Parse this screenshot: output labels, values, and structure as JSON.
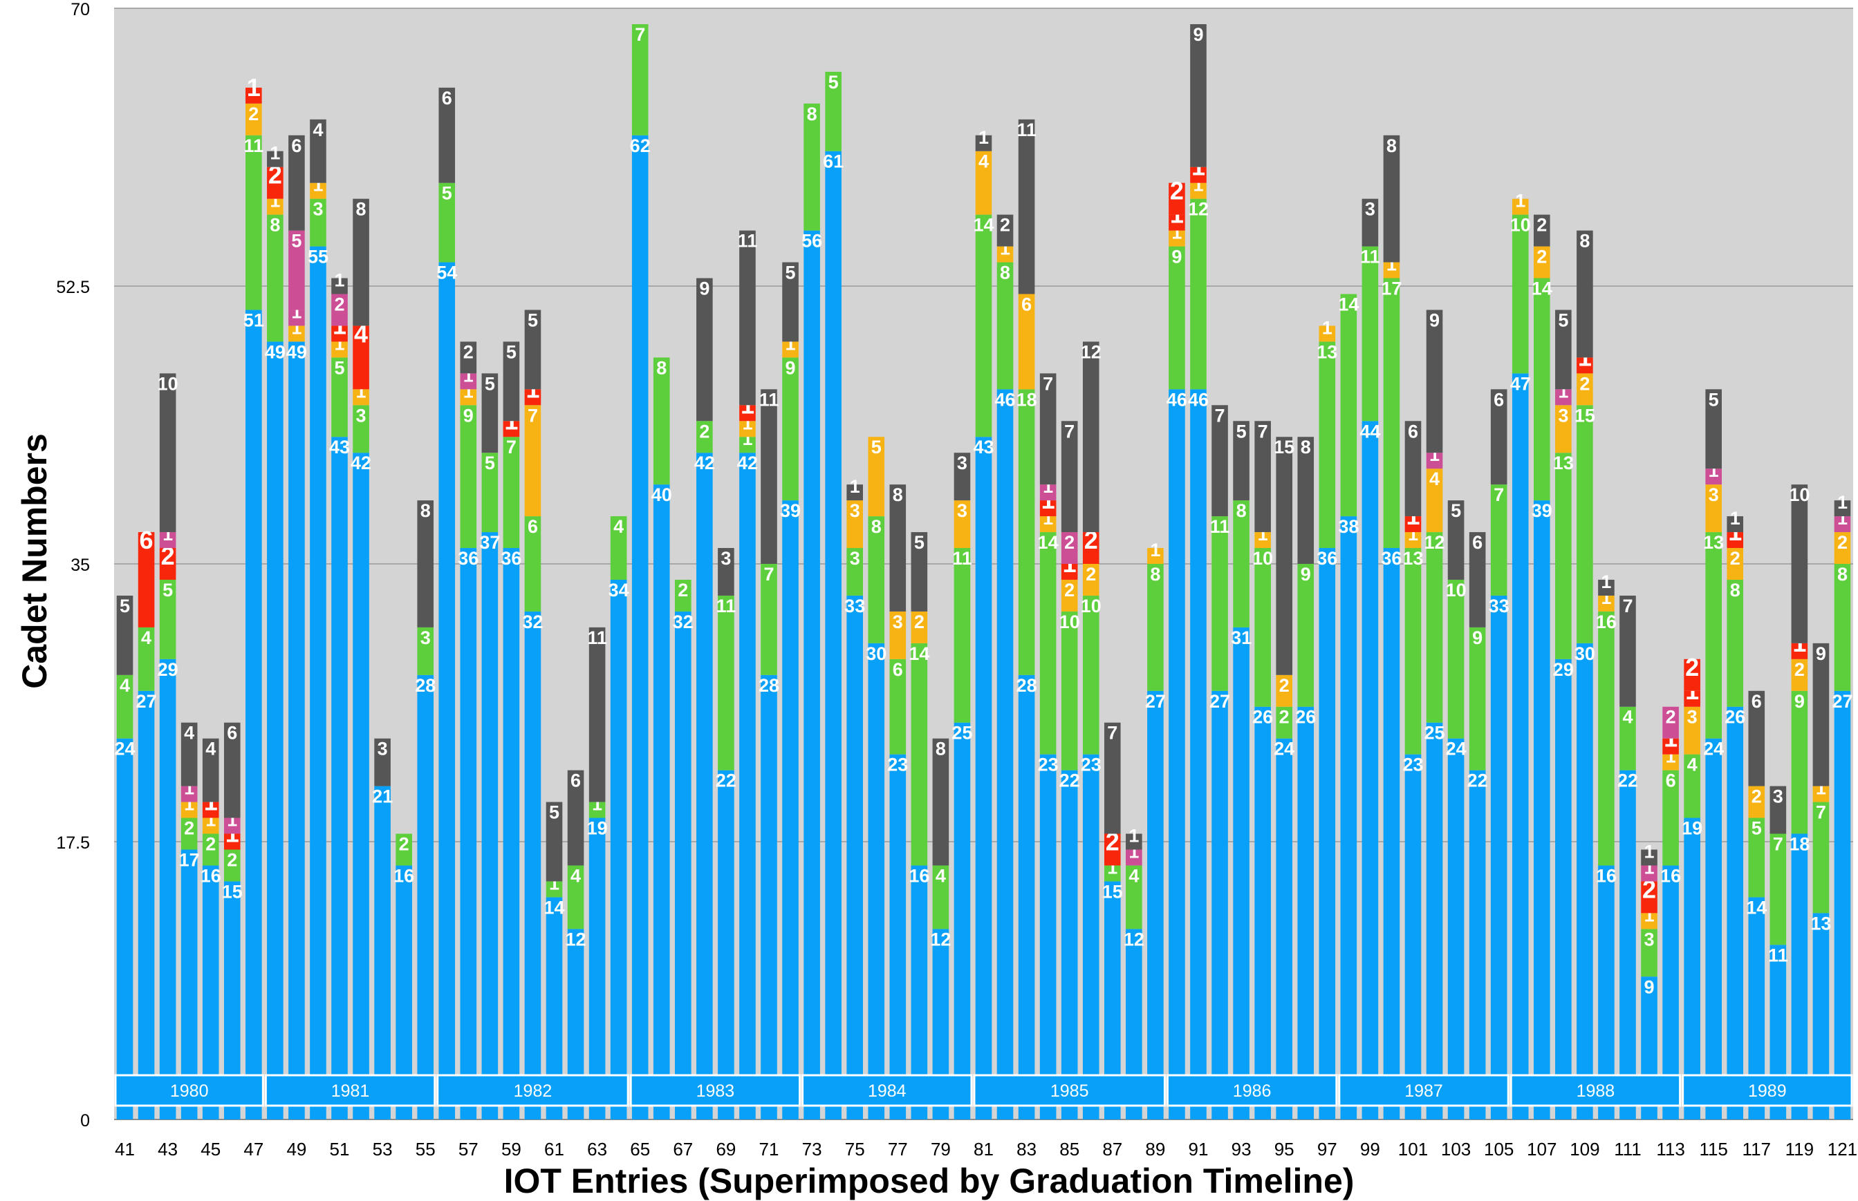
{
  "chart_data": {
    "type": "bar",
    "stacked": true,
    "xlabel": "IOT Entries (Superimposed by Graduation Timeline)",
    "ylabel": "Cadet Numbers",
    "ylim": [
      0,
      70
    ],
    "yticks": [
      0,
      17.5,
      35,
      52.5,
      70
    ],
    "grid": true,
    "background": "#d4d4d4",
    "xticks": [
      41,
      43,
      45,
      47,
      49,
      51,
      53,
      55,
      57,
      59,
      61,
      63,
      65,
      67,
      69,
      71,
      73,
      75,
      77,
      79,
      81,
      83,
      85,
      87,
      89,
      91,
      93,
      95,
      97,
      99,
      101,
      103,
      105,
      107,
      109,
      111,
      113,
      115,
      117,
      119,
      121
    ],
    "series_colors": [
      "#08a0f8",
      "#5ecf3c",
      "#f7b313",
      "#f8260a",
      "#cc4e94",
      "#565656"
    ],
    "timeline": [
      {
        "label": "1980",
        "from": 41,
        "to": 47
      },
      {
        "label": "1981",
        "from": 48,
        "to": 55
      },
      {
        "label": "1982",
        "from": 56,
        "to": 64
      },
      {
        "label": "1983",
        "from": 65,
        "to": 72
      },
      {
        "label": "1984",
        "from": 73,
        "to": 80
      },
      {
        "label": "1985",
        "from": 81,
        "to": 89
      },
      {
        "label": "1986",
        "from": 90,
        "to": 97
      },
      {
        "label": "1987",
        "from": 98,
        "to": 105
      },
      {
        "label": "1988",
        "from": 106,
        "to": 113
      },
      {
        "label": "1989",
        "from": 114,
        "to": 121
      }
    ],
    "categories": [
      41,
      42,
      43,
      44,
      45,
      46,
      47,
      48,
      49,
      50,
      51,
      52,
      53,
      54,
      55,
      56,
      57,
      58,
      59,
      60,
      61,
      62,
      63,
      64,
      65,
      66,
      67,
      68,
      69,
      70,
      71,
      72,
      73,
      74,
      75,
      76,
      77,
      78,
      79,
      80,
      81,
      82,
      83,
      84,
      85,
      86,
      87,
      88,
      89,
      90,
      91,
      92,
      93,
      94,
      95,
      96,
      97,
      98,
      99,
      100,
      101,
      102,
      103,
      104,
      105,
      106,
      107,
      108,
      109,
      110,
      111,
      112,
      113,
      114,
      115,
      116,
      117,
      118,
      119,
      120,
      121
    ],
    "stacks": [
      [
        [
          0,
          24
        ],
        [
          1,
          4
        ],
        [
          5,
          5
        ]
      ],
      [
        [
          0,
          27
        ],
        [
          1,
          4
        ],
        [
          3,
          6
        ]
      ],
      [
        [
          0,
          29
        ],
        [
          1,
          5
        ],
        [
          3,
          2
        ],
        [
          4,
          1
        ],
        [
          5,
          10
        ]
      ],
      [
        [
          0,
          17
        ],
        [
          1,
          2
        ],
        [
          2,
          1
        ],
        [
          4,
          1
        ],
        [
          5,
          4
        ]
      ],
      [
        [
          0,
          16
        ],
        [
          1,
          2
        ],
        [
          2,
          1
        ],
        [
          3,
          1
        ],
        [
          5,
          4
        ]
      ],
      [
        [
          0,
          15
        ],
        [
          1,
          2
        ],
        [
          3,
          1
        ],
        [
          4,
          1
        ],
        [
          5,
          6
        ]
      ],
      [
        [
          0,
          51
        ],
        [
          1,
          11
        ],
        [
          2,
          2
        ],
        [
          3,
          1
        ]
      ],
      [
        [
          0,
          49
        ],
        [
          1,
          8
        ],
        [
          2,
          1
        ],
        [
          3,
          2
        ],
        [
          5,
          1
        ]
      ],
      [
        [
          0,
          49
        ],
        [
          2,
          1
        ],
        [
          4,
          1
        ],
        [
          4,
          5
        ],
        [
          5,
          6
        ]
      ],
      [
        [
          0,
          55
        ],
        [
          1,
          3
        ],
        [
          2,
          1
        ],
        [
          5,
          4
        ]
      ],
      [
        [
          0,
          43
        ],
        [
          1,
          5
        ],
        [
          2,
          1
        ],
        [
          3,
          1
        ],
        [
          4,
          2
        ],
        [
          5,
          1
        ]
      ],
      [
        [
          0,
          42
        ],
        [
          1,
          3
        ],
        [
          2,
          1
        ],
        [
          3,
          4
        ],
        [
          5,
          8
        ]
      ],
      [
        [
          0,
          21
        ],
        [
          5,
          3
        ]
      ],
      [
        [
          0,
          16
        ],
        [
          1,
          2
        ]
      ],
      [
        [
          0,
          28
        ],
        [
          1,
          3
        ],
        [
          5,
          8
        ]
      ],
      [
        [
          0,
          54
        ],
        [
          1,
          5
        ],
        [
          5,
          6
        ]
      ],
      [
        [
          0,
          36
        ],
        [
          1,
          9
        ],
        [
          2,
          1
        ],
        [
          4,
          1
        ],
        [
          5,
          2
        ]
      ],
      [
        [
          0,
          37
        ],
        [
          1,
          5
        ],
        [
          5,
          5
        ]
      ],
      [
        [
          0,
          36
        ],
        [
          1,
          7
        ],
        [
          3,
          1
        ],
        [
          5,
          5
        ]
      ],
      [
        [
          0,
          32
        ],
        [
          1,
          6
        ],
        [
          2,
          7
        ],
        [
          3,
          1
        ],
        [
          5,
          5
        ]
      ],
      [
        [
          0,
          14
        ],
        [
          1,
          1
        ],
        [
          5,
          5
        ]
      ],
      [
        [
          0,
          12
        ],
        [
          1,
          4
        ],
        [
          5,
          6
        ]
      ],
      [
        [
          0,
          19
        ],
        [
          1,
          1
        ],
        [
          5,
          11
        ]
      ],
      [
        [
          0,
          34
        ],
        [
          1,
          4
        ]
      ],
      [
        [
          0,
          62
        ],
        [
          1,
          7
        ]
      ],
      [
        [
          0,
          40
        ],
        [
          1,
          8
        ]
      ],
      [
        [
          0,
          32
        ],
        [
          1,
          2
        ]
      ],
      [
        [
          0,
          42
        ],
        [
          1,
          2
        ],
        [
          5,
          9
        ]
      ],
      [
        [
          0,
          22
        ],
        [
          1,
          11
        ],
        [
          5,
          3
        ]
      ],
      [
        [
          0,
          42
        ],
        [
          1,
          1
        ],
        [
          2,
          1
        ],
        [
          3,
          1
        ],
        [
          5,
          11
        ]
      ],
      [
        [
          0,
          28
        ],
        [
          1,
          7
        ],
        [
          5,
          11
        ]
      ],
      [
        [
          0,
          39
        ],
        [
          1,
          9
        ],
        [
          2,
          1
        ],
        [
          5,
          5
        ]
      ],
      [
        [
          0,
          56
        ],
        [
          1,
          8
        ]
      ],
      [
        [
          0,
          61
        ],
        [
          1,
          5
        ]
      ],
      [
        [
          0,
          33
        ],
        [
          1,
          3
        ],
        [
          2,
          3
        ],
        [
          5,
          1
        ]
      ],
      [
        [
          0,
          30
        ],
        [
          1,
          8
        ],
        [
          2,
          5
        ]
      ],
      [
        [
          0,
          23
        ],
        [
          1,
          6
        ],
        [
          2,
          3
        ],
        [
          5,
          8
        ]
      ],
      [
        [
          0,
          16
        ],
        [
          1,
          14
        ],
        [
          2,
          2
        ],
        [
          5,
          5
        ]
      ],
      [
        [
          0,
          12
        ],
        [
          1,
          4
        ],
        [
          5,
          8
        ]
      ],
      [
        [
          0,
          25
        ],
        [
          1,
          11
        ],
        [
          2,
          3
        ],
        [
          5,
          3
        ]
      ],
      [
        [
          0,
          43
        ],
        [
          1,
          14
        ],
        [
          2,
          4
        ],
        [
          5,
          1
        ]
      ],
      [
        [
          0,
          46
        ],
        [
          1,
          8
        ],
        [
          2,
          1
        ],
        [
          5,
          2
        ]
      ],
      [
        [
          0,
          28
        ],
        [
          1,
          18
        ],
        [
          2,
          6
        ],
        [
          5,
          11
        ]
      ],
      [
        [
          0,
          23
        ],
        [
          1,
          14
        ],
        [
          2,
          1
        ],
        [
          3,
          1
        ],
        [
          4,
          1
        ],
        [
          5,
          7
        ]
      ],
      [
        [
          0,
          22
        ],
        [
          1,
          10
        ],
        [
          2,
          2
        ],
        [
          3,
          1
        ],
        [
          4,
          2
        ],
        [
          5,
          7
        ]
      ],
      [
        [
          0,
          23
        ],
        [
          1,
          10
        ],
        [
          2,
          2
        ],
        [
          3,
          2
        ],
        [
          5,
          12
        ]
      ],
      [
        [
          0,
          15
        ],
        [
          1,
          1
        ],
        [
          3,
          2
        ],
        [
          5,
          7
        ]
      ],
      [
        [
          0,
          12
        ],
        [
          1,
          4
        ],
        [
          4,
          1
        ],
        [
          5,
          1
        ]
      ],
      [
        [
          0,
          27
        ],
        [
          1,
          8
        ],
        [
          2,
          1
        ]
      ],
      [
        [
          0,
          46
        ],
        [
          1,
          9
        ],
        [
          2,
          1
        ],
        [
          3,
          1
        ],
        [
          3,
          2
        ]
      ],
      [
        [
          0,
          46
        ],
        [
          1,
          12
        ],
        [
          2,
          1
        ],
        [
          3,
          1
        ],
        [
          5,
          9
        ]
      ],
      [
        [
          0,
          27
        ],
        [
          1,
          11
        ],
        [
          5,
          7
        ]
      ],
      [
        [
          0,
          31
        ],
        [
          1,
          8
        ],
        [
          5,
          5
        ]
      ],
      [
        [
          0,
          26
        ],
        [
          1,
          10
        ],
        [
          2,
          1
        ],
        [
          5,
          7
        ]
      ],
      [
        [
          0,
          24
        ],
        [
          1,
          2
        ],
        [
          2,
          2
        ],
        [
          5,
          15
        ]
      ],
      [
        [
          0,
          26
        ],
        [
          1,
          9
        ],
        [
          5,
          8
        ]
      ],
      [
        [
          0,
          36
        ],
        [
          1,
          13
        ],
        [
          2,
          1
        ]
      ],
      [
        [
          0,
          38
        ],
        [
          1,
          14
        ]
      ],
      [
        [
          0,
          44
        ],
        [
          1,
          11
        ],
        [
          5,
          3
        ]
      ],
      [
        [
          0,
          36
        ],
        [
          1,
          17
        ],
        [
          2,
          1
        ],
        [
          5,
          8
        ]
      ],
      [
        [
          0,
          23
        ],
        [
          1,
          13
        ],
        [
          2,
          1
        ],
        [
          3,
          1
        ],
        [
          5,
          6
        ]
      ],
      [
        [
          0,
          25
        ],
        [
          1,
          12
        ],
        [
          2,
          4
        ],
        [
          4,
          1
        ],
        [
          5,
          9
        ]
      ],
      [
        [
          0,
          24
        ],
        [
          1,
          10
        ],
        [
          5,
          5
        ]
      ],
      [
        [
          0,
          22
        ],
        [
          1,
          9
        ],
        [
          5,
          6
        ]
      ],
      [
        [
          0,
          33
        ],
        [
          1,
          7
        ],
        [
          5,
          6
        ]
      ],
      [
        [
          0,
          47
        ],
        [
          1,
          10
        ],
        [
          2,
          1
        ]
      ],
      [
        [
          0,
          39
        ],
        [
          1,
          14
        ],
        [
          2,
          2
        ],
        [
          5,
          2
        ]
      ],
      [
        [
          0,
          29
        ],
        [
          1,
          13
        ],
        [
          2,
          3
        ],
        [
          4,
          1
        ],
        [
          5,
          5
        ]
      ],
      [
        [
          0,
          30
        ],
        [
          1,
          15
        ],
        [
          2,
          2
        ],
        [
          3,
          1
        ],
        [
          5,
          8
        ]
      ],
      [
        [
          0,
          16
        ],
        [
          1,
          16
        ],
        [
          2,
          1
        ],
        [
          5,
          1
        ]
      ],
      [
        [
          0,
          22
        ],
        [
          1,
          4
        ],
        [
          5,
          7
        ]
      ],
      [
        [
          0,
          9
        ],
        [
          1,
          3
        ],
        [
          2,
          1
        ],
        [
          3,
          2
        ],
        [
          4,
          1
        ],
        [
          5,
          1
        ]
      ],
      [
        [
          0,
          16
        ],
        [
          1,
          6
        ],
        [
          2,
          1
        ],
        [
          3,
          1
        ],
        [
          4,
          2
        ]
      ],
      [
        [
          0,
          19
        ],
        [
          1,
          4
        ],
        [
          2,
          3
        ],
        [
          3,
          1
        ],
        [
          3,
          2
        ]
      ],
      [
        [
          0,
          24
        ],
        [
          1,
          13
        ],
        [
          2,
          3
        ],
        [
          4,
          1
        ],
        [
          5,
          5
        ]
      ],
      [
        [
          0,
          26
        ],
        [
          1,
          8
        ],
        [
          2,
          2
        ],
        [
          3,
          1
        ],
        [
          5,
          1
        ]
      ],
      [
        [
          0,
          14
        ],
        [
          1,
          5
        ],
        [
          2,
          2
        ],
        [
          5,
          6
        ]
      ],
      [
        [
          0,
          11
        ],
        [
          1,
          7
        ],
        [
          5,
          3
        ]
      ],
      [
        [
          0,
          18
        ],
        [
          1,
          9
        ],
        [
          2,
          2
        ],
        [
          3,
          1
        ],
        [
          5,
          10
        ]
      ],
      [
        [
          0,
          13
        ],
        [
          1,
          7
        ],
        [
          2,
          1
        ],
        [
          5,
          9
        ]
      ],
      [
        [
          0,
          27
        ],
        [
          1,
          8
        ],
        [
          2,
          2
        ],
        [
          4,
          1
        ],
        [
          5,
          1
        ]
      ]
    ]
  }
}
